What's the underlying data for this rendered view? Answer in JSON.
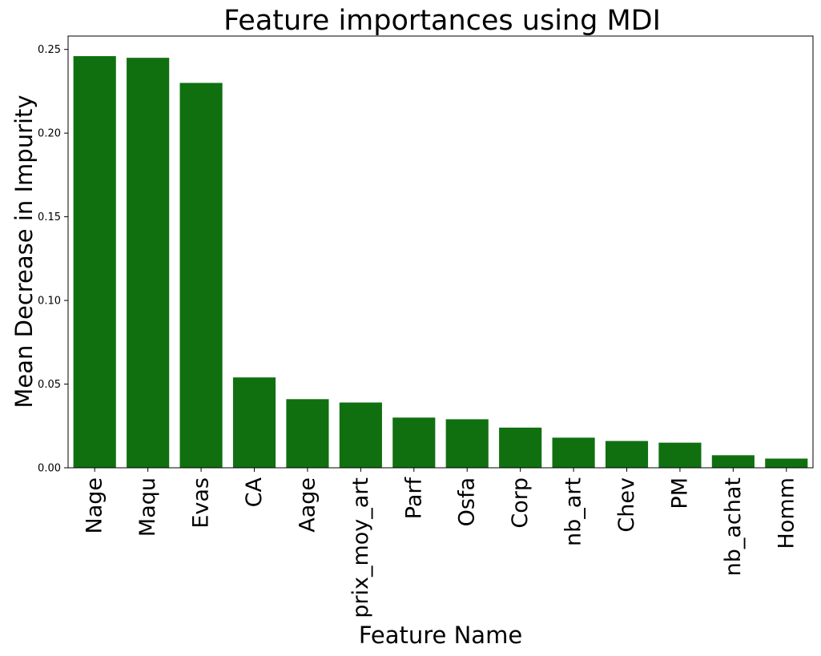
{
  "chart_data": {
    "type": "bar",
    "title": "Feature importances using MDI",
    "xlabel": "Feature Name",
    "ylabel": "Mean Decrease in Impurity",
    "categories": [
      "Nage",
      "Maqu",
      "Evas",
      "CA",
      "Aage",
      "prix_moy_art",
      "Parf",
      "Osfa",
      "Corp",
      "nb_art",
      "Chev",
      "PM",
      "nb_achat",
      "Homm"
    ],
    "values": [
      0.246,
      0.245,
      0.23,
      0.054,
      0.041,
      0.039,
      0.03,
      0.029,
      0.024,
      0.018,
      0.016,
      0.015,
      0.0075,
      0.0055
    ],
    "yticks": [
      0.0,
      0.05,
      0.1,
      0.15,
      0.2,
      0.25
    ],
    "ytick_labels": [
      "0.00",
      "0.05",
      "0.10",
      "0.15",
      "0.20",
      "0.25"
    ],
    "ylim": [
      0,
      0.258
    ],
    "bar_color": "#107010",
    "grid": false,
    "legend": "none"
  }
}
